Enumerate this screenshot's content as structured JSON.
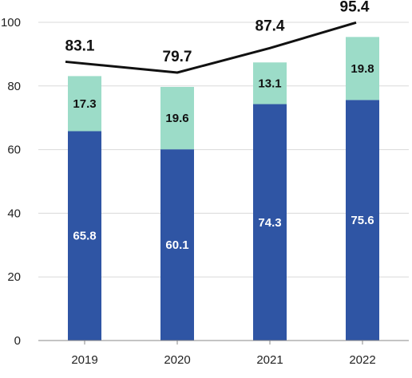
{
  "chart_data": {
    "type": "bar",
    "stacked": true,
    "categories": [
      "2019",
      "2020",
      "2021",
      "2022"
    ],
    "series": [
      {
        "values": [
          65.8,
          60.1,
          74.3,
          75.6
        ],
        "color": "#2f55a4",
        "label_color": "#ffffff"
      },
      {
        "values": [
          17.3,
          19.6,
          13.1,
          19.8
        ],
        "color": "#9cdcc8",
        "label_color": "#111111"
      }
    ],
    "totals": {
      "values": [
        83.1,
        79.7,
        87.4,
        95.4
      ],
      "labels": [
        "83.1",
        "79.7",
        "87.4",
        "95.4"
      ],
      "line_color": "#111111"
    },
    "segment_labels": [
      [
        "65.8",
        "60.1",
        "74.3",
        "75.6"
      ],
      [
        "17.3",
        "19.6",
        "13.1",
        "19.8"
      ]
    ],
    "y_ticks": [
      0,
      20,
      40,
      60,
      80,
      100
    ],
    "y_tick_labels": [
      "0",
      "20",
      "40",
      "60",
      "80",
      "100"
    ],
    "ylim": [
      0,
      100
    ],
    "grid": true,
    "gridline_color": "#d9d9d9",
    "axis_color": "#888888",
    "title": "",
    "xlabel": "",
    "ylabel": ""
  }
}
